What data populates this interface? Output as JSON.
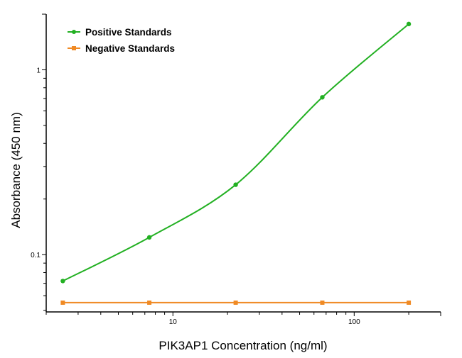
{
  "chart_data": {
    "type": "line",
    "title": "",
    "xlabel": "PIK3AP1 Concentration (ng/ml)",
    "ylabel": "Absorbance (450 nm)",
    "xscale": "log",
    "yscale": "log",
    "xlim": [
      2,
      300
    ],
    "ylim": [
      0.049,
      2.0
    ],
    "xticks": [
      {
        "value": 10,
        "label": "10"
      },
      {
        "value": 100,
        "label": "100"
      }
    ],
    "yticks": [
      {
        "value": 0.1,
        "label": "0.1"
      },
      {
        "value": 1,
        "label": "1"
      }
    ],
    "grid": false,
    "legend_position": "top-left",
    "series": [
      {
        "name": "Positive Standards",
        "color": "#22b022",
        "marker": "circle",
        "fit": "smooth curve",
        "x": [
          2.47,
          7.41,
          22.2,
          66.7,
          200
        ],
        "y": [
          0.072,
          0.124,
          0.239,
          0.71,
          1.77
        ]
      },
      {
        "name": "Negative Standards",
        "color": "#f08a24",
        "marker": "square",
        "fit": "straight line",
        "x": [
          2.47,
          7.41,
          22.2,
          66.7,
          200
        ],
        "y": [
          0.055,
          0.055,
          0.055,
          0.055,
          0.055
        ]
      }
    ]
  }
}
